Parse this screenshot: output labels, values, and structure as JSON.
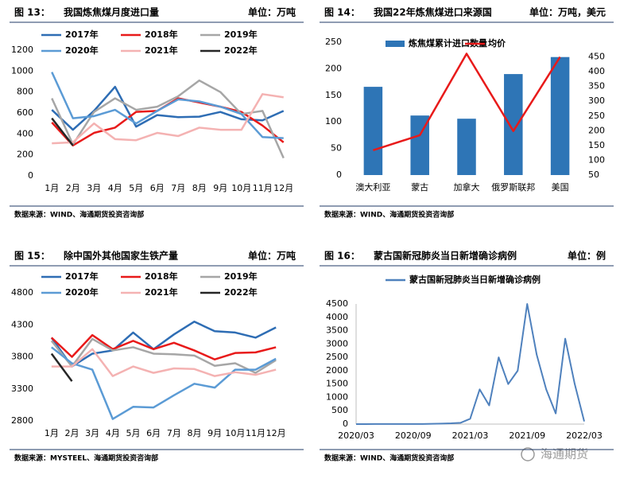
{
  "chart_data": [
    {
      "type": "line",
      "figure": "图 13：",
      "title": "我国炼焦煤月度进口量",
      "unit": "单位：万吨",
      "source": "数据来源：WIND、海通期货投资咨询部",
      "categories": [
        "1月",
        "2月",
        "3月",
        "4月",
        "5月",
        "6月",
        "7月",
        "8月",
        "9月",
        "10月",
        "11月",
        "12月"
      ],
      "ylim": [
        0,
        1200
      ],
      "yticks": [
        0,
        200,
        400,
        600,
        800,
        1000,
        1200
      ],
      "grid": false,
      "series": [
        {
          "name": "2017年",
          "color": "#2e6db4",
          "values": [
            630,
            440,
            620,
            850,
            470,
            580,
            560,
            565,
            610,
            540,
            530,
            620
          ]
        },
        {
          "name": "2018年",
          "color": "#e81a1a",
          "values": [
            510,
            290,
            410,
            460,
            610,
            620,
            740,
            700,
            660,
            610,
            480,
            320
          ]
        },
        {
          "name": "2019年",
          "color": "#a6a6a6",
          "values": [
            740,
            300,
            610,
            740,
            630,
            660,
            760,
            910,
            800,
            590,
            620,
            170
          ]
        },
        {
          "name": "2020年",
          "color": "#5b9bd5",
          "values": [
            990,
            550,
            570,
            630,
            500,
            620,
            730,
            710,
            660,
            590,
            370,
            360
          ]
        },
        {
          "name": "2021年",
          "color": "#f4b2b2",
          "values": [
            310,
            320,
            500,
            350,
            340,
            410,
            380,
            460,
            440,
            440,
            780,
            750
          ]
        },
        {
          "name": "2022年",
          "color": "#262626",
          "values": [
            550,
            290,
            null,
            null,
            null,
            null,
            null,
            null,
            null,
            null,
            null,
            null
          ]
        }
      ]
    },
    {
      "type": "bar",
      "figure": "图 14：",
      "title": "我国22年炼焦煤进口来源国",
      "unit": "单位：万吨，美元",
      "source": "数据来源：WIND、海通期货投资咨询部",
      "categories": [
        "澳大利亚",
        "蒙古",
        "加拿大",
        "俄罗斯联邦",
        "美国"
      ],
      "ylim": [
        0,
        250
      ],
      "yticks": [
        0,
        50,
        100,
        150,
        200,
        250
      ],
      "y2lim": [
        50,
        500
      ],
      "y2ticks": [
        50,
        100,
        150,
        200,
        250,
        300,
        350,
        400,
        450
      ],
      "grid": false,
      "series": [
        {
          "name": "炼焦煤累计进口数量",
          "color": "#2e75b6",
          "values": [
            166,
            112,
            106,
            190,
            222
          ]
        },
        {
          "name": "均价",
          "color": "#e81a1a",
          "axis": "y2",
          "values": [
            134,
            185,
            461,
            199,
            450
          ]
        }
      ]
    },
    {
      "type": "line",
      "figure": "图 15：",
      "title": "除中国外其他国家生铁产量",
      "unit": "单位：万吨",
      "source": "数据来源：MYSTEEL、海通期货投资咨询部",
      "categories": [
        "1月",
        "2月",
        "3月",
        "4月",
        "5月",
        "6月",
        "7月",
        "8月",
        "9月",
        "10月",
        "11月",
        "12月"
      ],
      "ylim": [
        2800,
        4800
      ],
      "yticks": [
        2800,
        3300,
        3800,
        4300,
        4800
      ],
      "grid": false,
      "series": [
        {
          "name": "2017年",
          "color": "#2e6db4",
          "values": [
            4100,
            3650,
            3850,
            3900,
            4180,
            3920,
            4150,
            4350,
            4200,
            4180,
            4100,
            4260
          ]
        },
        {
          "name": "2018年",
          "color": "#e81a1a",
          "values": [
            4100,
            3800,
            4140,
            3920,
            4050,
            3920,
            4020,
            3900,
            3760,
            3860,
            3870,
            3950
          ]
        },
        {
          "name": "2019年",
          "color": "#a6a6a6",
          "values": [
            4050,
            3650,
            4080,
            3900,
            3950,
            3850,
            3840,
            3820,
            3660,
            3700,
            3550,
            3750
          ]
        },
        {
          "name": "2020年",
          "color": "#5b9bd5",
          "values": [
            3950,
            3700,
            3600,
            2830,
            3020,
            3010,
            3200,
            3380,
            3320,
            3600,
            3600,
            3770
          ]
        },
        {
          "name": "2021年",
          "color": "#f4b2b2",
          "values": [
            3650,
            3650,
            3920,
            3500,
            3650,
            3550,
            3620,
            3610,
            3500,
            3560,
            3520,
            3600
          ]
        },
        {
          "name": "2022年",
          "color": "#262626",
          "values": [
            3850,
            3420,
            null,
            null,
            null,
            null,
            null,
            null,
            null,
            null,
            null,
            null
          ]
        }
      ]
    },
    {
      "type": "line",
      "figure": "图 16：",
      "title": "蒙古国新冠肺炎当日新增确诊病例",
      "unit": "单位：例",
      "source": "数据来源：WIND、海通期货投资咨询部",
      "x": [
        "2020/03",
        "2020/04",
        "2020/05",
        "2020/06",
        "2020/07",
        "2020/08",
        "2020/09",
        "2020/10",
        "2020/11",
        "2020/12",
        "2021/01",
        "2021/02",
        "2021/03",
        "2021/04",
        "2021/05",
        "2021/06",
        "2021/07",
        "2021/08",
        "2021/09",
        "2021/10",
        "2021/11",
        "2021/12",
        "2022/01",
        "2022/02",
        "2022/03"
      ],
      "xticks": [
        "2020/03",
        "2020/09",
        "2021/03",
        "2021/09",
        "2022/03"
      ],
      "ylim": [
        0,
        4500
      ],
      "yticks": [
        0,
        500,
        1000,
        1500,
        2000,
        2500,
        3000,
        3500,
        4000,
        4500
      ],
      "grid": false,
      "series": [
        {
          "name": "蒙古国新冠肺炎当日新增确诊病例",
          "color": "#4f81bd",
          "values": [
            0,
            0,
            5,
            5,
            5,
            5,
            5,
            5,
            10,
            20,
            30,
            50,
            200,
            1300,
            700,
            2500,
            1500,
            2000,
            4500,
            2600,
            1300,
            400,
            3200,
            1500,
            100
          ]
        }
      ]
    }
  ],
  "watermark": "海通期货"
}
